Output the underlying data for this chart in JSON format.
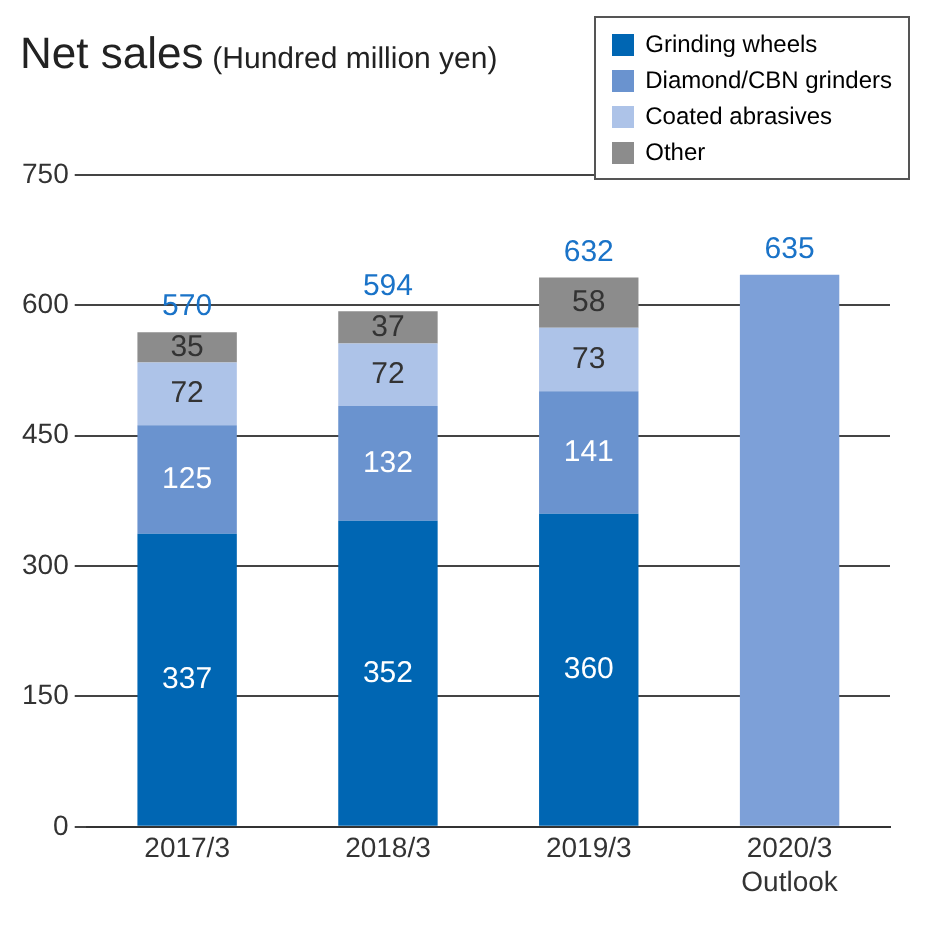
{
  "chart_data": {
    "type": "bar",
    "title": "Net sales",
    "subtitle": "(Hundred million yen)",
    "categories": [
      "2017/3",
      "2018/3",
      "2019/3",
      "2020/3 Outlook"
    ],
    "stacked": true,
    "series": [
      {
        "name": "Grinding wheels",
        "color": "#0066b3",
        "values": [
          337,
          352,
          360,
          null
        ],
        "value_labels": [
          "337",
          "352",
          "360",
          null
        ]
      },
      {
        "name": "Diamond/CBN grinders",
        "color": "#6a93cf",
        "values": [
          125,
          132,
          141,
          null
        ],
        "value_labels": [
          "125",
          "132",
          "141",
          null
        ]
      },
      {
        "name": "Coated abrasives",
        "color": "#adc3e8",
        "values": [
          72,
          72,
          73,
          null
        ],
        "value_labels": [
          "72",
          "72",
          "73",
          null
        ]
      },
      {
        "name": "Other",
        "color": "#8c8c8c",
        "values": [
          35,
          37,
          58,
          null
        ],
        "value_labels": [
          "35",
          "37",
          "58",
          null
        ]
      },
      {
        "color": "#7da0d8",
        "values": [
          null,
          null,
          null,
          635
        ]
      }
    ],
    "totals": [
      "570",
      "594",
      "632",
      "635"
    ],
    "ylim": [
      0,
      750
    ],
    "yticks": [
      0,
      150,
      300,
      450,
      600,
      750
    ],
    "grid": "y",
    "legend": "top right"
  }
}
